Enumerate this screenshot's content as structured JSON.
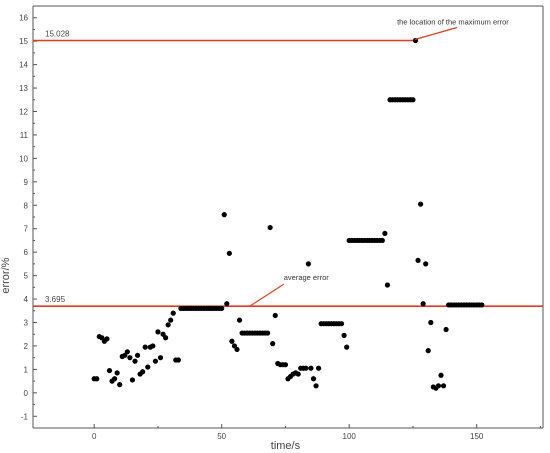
{
  "chart_data": {
    "type": "scatter",
    "title": "",
    "xlabel": "time/s",
    "ylabel": "error/%",
    "xlim": [
      -24,
      176
    ],
    "ylim": [
      -1.5,
      16.5
    ],
    "x_ticks": [
      0,
      50,
      100,
      150
    ],
    "y_ticks": [
      -1,
      0,
      1,
      2,
      3,
      4,
      5,
      6,
      7,
      8,
      9,
      10,
      11,
      12,
      13,
      14,
      15,
      16
    ],
    "grid": false,
    "colors": {
      "points": "#000000",
      "reference_lines": "#e8391e",
      "axes": "#555555"
    },
    "reference_lines": [
      {
        "y": 15.028,
        "label": "15.028",
        "x_extent": [
          -24,
          125
        ]
      },
      {
        "y": 3.695,
        "label": "3.695",
        "x_extent": [
          -24,
          176
        ]
      }
    ],
    "annotations": [
      {
        "text": "the location of the maximum error",
        "target": [
          125,
          15.028
        ]
      },
      {
        "text": "average error",
        "target": [
          61,
          3.695
        ]
      }
    ],
    "series": [
      {
        "points": [
          [
            0,
            0.6
          ],
          [
            1,
            0.6
          ],
          [
            2,
            2.4
          ],
          [
            3,
            2.35
          ],
          [
            4,
            2.2
          ],
          [
            5,
            2.3
          ],
          [
            6,
            0.95
          ],
          [
            7,
            0.5
          ],
          [
            8,
            0.6
          ],
          [
            9,
            0.85
          ],
          [
            10,
            0.35
          ],
          [
            11,
            1.55
          ],
          [
            12,
            1.6
          ],
          [
            13,
            1.75
          ],
          [
            14,
            1.5
          ],
          [
            15,
            0.55
          ],
          [
            16,
            1.35
          ],
          [
            17,
            1.6
          ],
          [
            18,
            0.8
          ],
          [
            19,
            0.9
          ],
          [
            20,
            1.95
          ],
          [
            21,
            1.1
          ],
          [
            22,
            1.95
          ],
          [
            23,
            2.0
          ],
          [
            24,
            1.35
          ],
          [
            25,
            2.6
          ],
          [
            26,
            1.5
          ],
          [
            27,
            2.5
          ],
          [
            28,
            2.35
          ],
          [
            29,
            2.9
          ],
          [
            30,
            3.1
          ],
          [
            31,
            3.4
          ],
          [
            32,
            1.4
          ],
          [
            33,
            1.4
          ],
          [
            34,
            3.6
          ],
          [
            35,
            3.6
          ],
          [
            36,
            3.6
          ],
          [
            37,
            3.6
          ],
          [
            38,
            3.6
          ],
          [
            39,
            3.6
          ],
          [
            40,
            3.6
          ],
          [
            41,
            3.6
          ],
          [
            42,
            3.6
          ],
          [
            43,
            3.6
          ],
          [
            44,
            3.6
          ],
          [
            45,
            3.6
          ],
          [
            46,
            3.6
          ],
          [
            47,
            3.6
          ],
          [
            48,
            3.6
          ],
          [
            49,
            3.6
          ],
          [
            50,
            3.6
          ],
          [
            51,
            7.6
          ],
          [
            52,
            3.8
          ],
          [
            53,
            5.95
          ],
          [
            54,
            2.2
          ],
          [
            55,
            2.0
          ],
          [
            56,
            1.85
          ],
          [
            57,
            3.1
          ],
          [
            58,
            2.55
          ],
          [
            59,
            2.55
          ],
          [
            60,
            2.55
          ],
          [
            61,
            2.55
          ],
          [
            62,
            2.55
          ],
          [
            63,
            2.55
          ],
          [
            64,
            2.55
          ],
          [
            65,
            2.55
          ],
          [
            66,
            2.55
          ],
          [
            67,
            2.55
          ],
          [
            68,
            2.55
          ],
          [
            69,
            7.05
          ],
          [
            70,
            2.1
          ],
          [
            71,
            3.3
          ],
          [
            72,
            1.25
          ],
          [
            73,
            1.2
          ],
          [
            74,
            1.2
          ],
          [
            75,
            1.2
          ],
          [
            76,
            0.6
          ],
          [
            77,
            0.7
          ],
          [
            78,
            0.8
          ],
          [
            79,
            0.85
          ],
          [
            80,
            0.8
          ],
          [
            81,
            1.05
          ],
          [
            82,
            1.05
          ],
          [
            83,
            1.05
          ],
          [
            84,
            5.5
          ],
          [
            85,
            1.05
          ],
          [
            86,
            0.6
          ],
          [
            87,
            0.3
          ],
          [
            88,
            1.05
          ],
          [
            89,
            2.95
          ],
          [
            90,
            2.95
          ],
          [
            91,
            2.95
          ],
          [
            92,
            2.95
          ],
          [
            93,
            2.95
          ],
          [
            94,
            2.95
          ],
          [
            95,
            2.95
          ],
          [
            96,
            2.95
          ],
          [
            97,
            2.95
          ],
          [
            98,
            2.45
          ],
          [
            99,
            1.95
          ],
          [
            100,
            6.5
          ],
          [
            101,
            6.5
          ],
          [
            102,
            6.5
          ],
          [
            103,
            6.5
          ],
          [
            104,
            6.5
          ],
          [
            105,
            6.5
          ],
          [
            106,
            6.5
          ],
          [
            107,
            6.5
          ],
          [
            108,
            6.5
          ],
          [
            109,
            6.5
          ],
          [
            110,
            6.5
          ],
          [
            111,
            6.5
          ],
          [
            112,
            6.5
          ],
          [
            113,
            6.5
          ],
          [
            114,
            6.8
          ],
          [
            115,
            4.6
          ],
          [
            116,
            12.5
          ],
          [
            117,
            12.5
          ],
          [
            118,
            12.5
          ],
          [
            119,
            12.5
          ],
          [
            120,
            12.5
          ],
          [
            121,
            12.5
          ],
          [
            122,
            12.5
          ],
          [
            123,
            12.5
          ],
          [
            124,
            12.5
          ],
          [
            125,
            12.5
          ],
          [
            126,
            15.028
          ],
          [
            127,
            5.65
          ],
          [
            128,
            8.05
          ],
          [
            129,
            3.8
          ],
          [
            130,
            5.5
          ],
          [
            131,
            1.8
          ],
          [
            132,
            3.0
          ],
          [
            133,
            0.25
          ],
          [
            134,
            0.2
          ],
          [
            135,
            0.3
          ],
          [
            136,
            0.75
          ],
          [
            137,
            0.3
          ],
          [
            138,
            2.7
          ],
          [
            139,
            3.75
          ],
          [
            140,
            3.75
          ],
          [
            141,
            3.75
          ],
          [
            142,
            3.75
          ],
          [
            143,
            3.75
          ],
          [
            144,
            3.75
          ],
          [
            145,
            3.75
          ],
          [
            146,
            3.75
          ],
          [
            147,
            3.75
          ],
          [
            148,
            3.75
          ],
          [
            149,
            3.75
          ],
          [
            150,
            3.75
          ],
          [
            151,
            3.75
          ],
          [
            152,
            3.75
          ]
        ]
      }
    ]
  }
}
